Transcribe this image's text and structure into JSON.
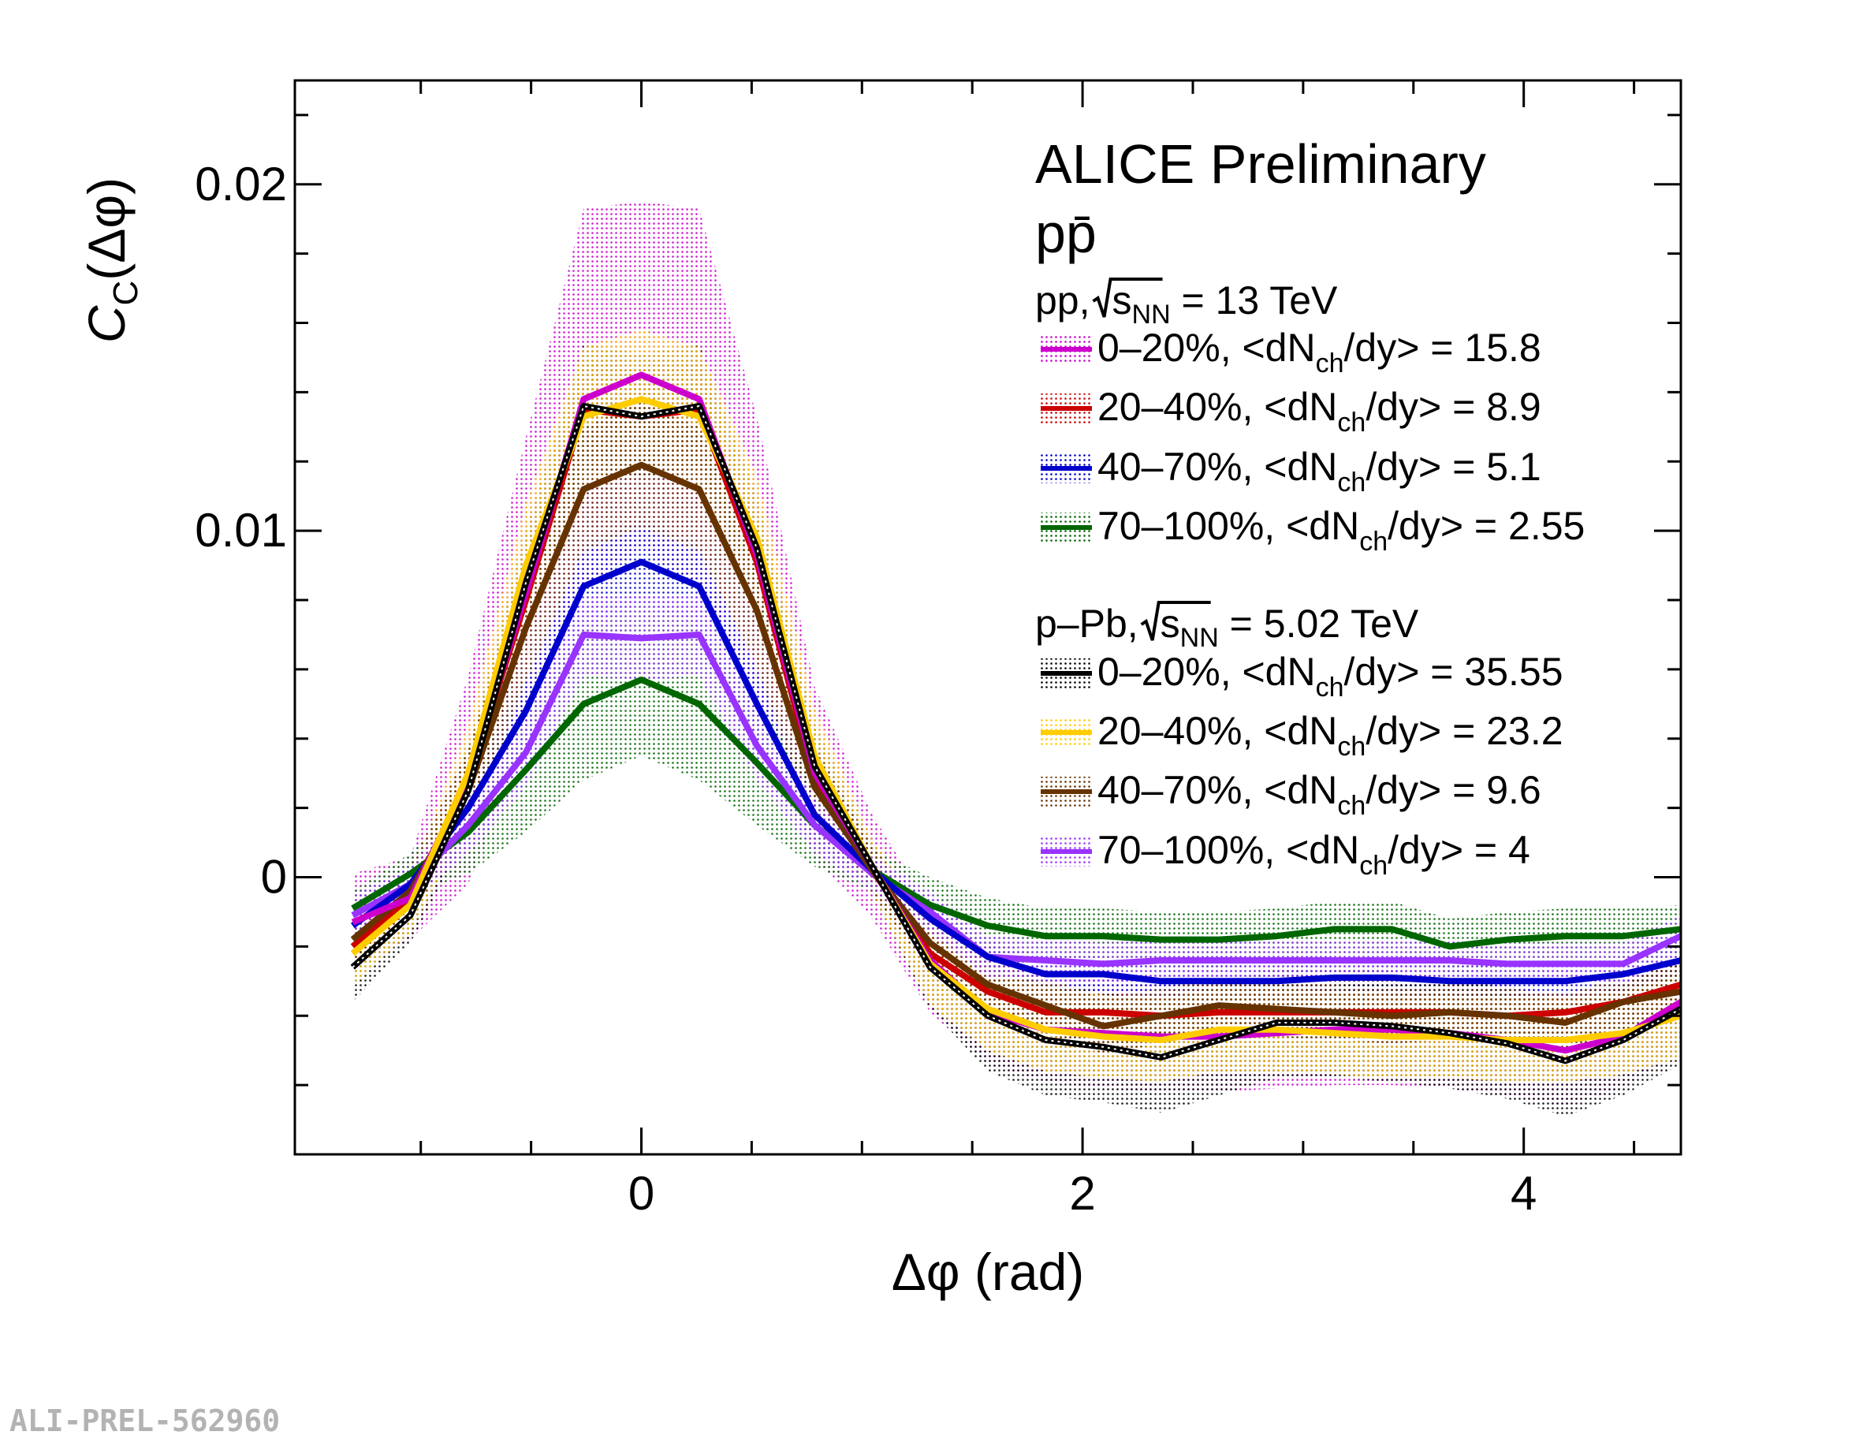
{
  "chart_data": {
    "type": "line",
    "title": "",
    "experiment": "ALICE Preliminary",
    "particle": "pp̄",
    "xlabel": "Δφ (rad)",
    "ylabel": "C_C(Δφ)",
    "ylabel_main": "C",
    "ylabel_sub": "C",
    "ylabel_rest": "(Δφ)",
    "xlim": [
      -1.5708,
      4.7124
    ],
    "ylim": [
      -0.008,
      0.023
    ],
    "xticks": [
      0,
      2,
      4
    ],
    "xtick_labels": [
      "0",
      "2",
      "4"
    ],
    "yticks": [
      0,
      0.01,
      0.02
    ],
    "ytick_labels": [
      "0",
      "0.01",
      "0.02"
    ],
    "x": [
      -1.309,
      -1.0472,
      -0.7854,
      -0.5236,
      -0.2618,
      0.0,
      0.2618,
      0.5236,
      0.7854,
      1.0472,
      1.309,
      1.5708,
      1.8326,
      2.0944,
      2.3562,
      2.618,
      2.8798,
      3.1416,
      3.4034,
      3.6652,
      3.927,
      4.1888,
      4.4506,
      4.7124
    ],
    "groups": [
      {
        "header": "pp, ",
        "sqrt_label": "s",
        "sqrt_sub": "NN",
        "energy": " = 13 TeV",
        "entries": [
          0,
          1,
          2,
          3
        ]
      },
      {
        "header": "p–Pb, ",
        "sqrt_label": "s",
        "sqrt_sub": "NN",
        "energy": " = 5.02 TeV",
        "entries": [
          4,
          5,
          6,
          7
        ]
      }
    ],
    "series": [
      {
        "name": "0–20%, <dN_ch/dy> = 15.8",
        "centrality": "0–20%, <dN",
        "mult": "/dy> = 15.8",
        "color": "#cc00cc",
        "values": [
          -0.0013,
          -0.0006,
          0.0028,
          0.0082,
          0.0138,
          0.0145,
          0.0138,
          0.0093,
          0.003,
          0.0003,
          -0.0024,
          -0.0039,
          -0.0044,
          -0.0045,
          -0.0046,
          -0.0046,
          -0.0045,
          -0.0044,
          -0.0044,
          -0.0045,
          -0.0047,
          -0.005,
          -0.0046,
          -0.0036
        ],
        "band": [
          0.0014,
          0.0012,
          0.003,
          0.0045,
          0.0055,
          0.005,
          0.0055,
          0.004,
          0.0025,
          0.0015,
          0.0015,
          0.0015,
          0.0015,
          0.0016,
          0.0016,
          0.0016,
          0.0016,
          0.0016,
          0.0016,
          0.0016,
          0.0016,
          0.0016,
          0.0015,
          0.0014
        ]
      },
      {
        "name": "20–40%, <dN_ch/dy> = 8.9",
        "centrality": "20–40%, <dN",
        "mult": "/dy> = 8.9",
        "color": "#cc0000",
        "values": [
          -0.002,
          -0.0006,
          0.0028,
          0.008,
          0.0135,
          0.0133,
          0.0135,
          0.0091,
          0.0028,
          0.0002,
          -0.0022,
          -0.0033,
          -0.0039,
          -0.0039,
          -0.004,
          -0.0039,
          -0.0039,
          -0.0039,
          -0.0039,
          -0.0039,
          -0.004,
          -0.0039,
          -0.0036,
          -0.0031
        ],
        "band": [
          0.0008,
          0.0006,
          0.001,
          0.0012,
          0.0014,
          0.0014,
          0.0014,
          0.0012,
          0.001,
          0.0006,
          0.0006,
          0.0006,
          0.0006,
          0.0006,
          0.0006,
          0.0006,
          0.0006,
          0.0006,
          0.0006,
          0.0006,
          0.0006,
          0.0006,
          0.0006,
          0.0006
        ]
      },
      {
        "name": "40–70%, <dN_ch/dy> = 5.1",
        "centrality": "40–70%, <dN",
        "mult": "/dy> = 5.1",
        "color": "#0000cc",
        "values": [
          -0.0014,
          -0.0002,
          0.002,
          0.0048,
          0.0084,
          0.0091,
          0.0084,
          0.005,
          0.0018,
          0.0002,
          -0.0012,
          -0.0023,
          -0.0028,
          -0.0028,
          -0.003,
          -0.003,
          -0.003,
          -0.0029,
          -0.0029,
          -0.003,
          -0.003,
          -0.003,
          -0.0028,
          -0.0024
        ],
        "band": [
          0.0006,
          0.0005,
          0.0008,
          0.001,
          0.0012,
          0.0012,
          0.0012,
          0.001,
          0.0008,
          0.0005,
          0.0005,
          0.0005,
          0.0005,
          0.0005,
          0.0005,
          0.0005,
          0.0005,
          0.0005,
          0.0005,
          0.0005,
          0.0005,
          0.0005,
          0.0005,
          0.0005
        ]
      },
      {
        "name": "70–100%, <dN_ch/dy> = 2.55",
        "centrality": "70–100%, <dN",
        "mult": "/dy> = 2.55",
        "color": "#006600",
        "values": [
          -0.0009,
          0.0001,
          0.0013,
          0.0031,
          0.005,
          0.0057,
          0.005,
          0.0033,
          0.0015,
          0.0002,
          -0.0008,
          -0.0014,
          -0.0017,
          -0.0017,
          -0.0018,
          -0.0018,
          -0.0017,
          -0.0015,
          -0.0015,
          -0.002,
          -0.0018,
          -0.0017,
          -0.0017,
          -0.0015
        ],
        "band": [
          0.0005,
          0.0006,
          0.0012,
          0.0018,
          0.0022,
          0.0022,
          0.0022,
          0.0018,
          0.0012,
          0.0006,
          0.0008,
          0.0008,
          0.0008,
          0.0008,
          0.0008,
          0.0008,
          0.0008,
          0.0008,
          0.0008,
          0.0008,
          0.0008,
          0.0008,
          0.0008,
          0.0007
        ]
      },
      {
        "name": "0–20%, <dN_ch/dy> = 35.55",
        "centrality": "0–20%, <dN",
        "mult": "/dy> = 35.55",
        "color": "#000000",
        "values": [
          -0.0026,
          -0.0011,
          0.0025,
          0.0085,
          0.0136,
          0.0133,
          0.0136,
          0.0095,
          0.0032,
          0.0003,
          -0.0026,
          -0.004,
          -0.0047,
          -0.0049,
          -0.0052,
          -0.0047,
          -0.0042,
          -0.0042,
          -0.0043,
          -0.0045,
          -0.0048,
          -0.0053,
          -0.0047,
          -0.0038
        ],
        "band": [
          0.001,
          0.0008,
          0.0012,
          0.0015,
          0.0018,
          0.0018,
          0.0018,
          0.0015,
          0.0012,
          0.0008,
          0.0012,
          0.0016,
          0.0016,
          0.0016,
          0.0016,
          0.0016,
          0.0016,
          0.0016,
          0.0016,
          0.0016,
          0.0016,
          0.0016,
          0.0016,
          0.0016
        ]
      },
      {
        "name": "20–40%, <dN_ch/dy> = 23.2",
        "centrality": "20–40%, <dN",
        "mult": "/dy> = 23.2",
        "color": "#ffcc00",
        "values": [
          -0.0022,
          -0.0008,
          0.003,
          0.009,
          0.0133,
          0.0138,
          0.0133,
          0.0098,
          0.0035,
          0.0003,
          -0.0025,
          -0.0038,
          -0.0044,
          -0.0046,
          -0.0047,
          -0.0044,
          -0.0044,
          -0.0045,
          -0.0046,
          -0.0046,
          -0.0047,
          -0.0047,
          -0.0045,
          -0.004
        ],
        "band": [
          0.0009,
          0.0008,
          0.0014,
          0.0018,
          0.002,
          0.002,
          0.002,
          0.0018,
          0.0014,
          0.0008,
          0.0012,
          0.0012,
          0.0012,
          0.0012,
          0.0012,
          0.0012,
          0.0012,
          0.0012,
          0.0012,
          0.0012,
          0.0012,
          0.0012,
          0.0012,
          0.0012
        ]
      },
      {
        "name": "40–70%, <dN_ch/dy> = 9.6",
        "centrality": "40–70%, <dN",
        "mult": "/dy> = 9.6",
        "color": "#663300",
        "values": [
          -0.0018,
          -0.0004,
          0.0025,
          0.0072,
          0.0112,
          0.0119,
          0.0112,
          0.0077,
          0.0026,
          0.0002,
          -0.0019,
          -0.0031,
          -0.0037,
          -0.0043,
          -0.004,
          -0.0037,
          -0.0038,
          -0.0039,
          -0.004,
          -0.0039,
          -0.004,
          -0.0042,
          -0.0036,
          -0.0033
        ],
        "band": [
          0.0008,
          0.0007,
          0.0012,
          0.0016,
          0.0018,
          0.0018,
          0.0018,
          0.0016,
          0.0012,
          0.0007,
          0.0008,
          0.0008,
          0.0008,
          0.0008,
          0.0008,
          0.0008,
          0.0008,
          0.0008,
          0.0008,
          0.0008,
          0.0008,
          0.0008,
          0.0008,
          0.0008
        ]
      },
      {
        "name": "70–100%, <dN_ch/dy> = 4",
        "centrality": "70–100%, <dN",
        "mult": "/dy> = 4",
        "color": "#9933ff",
        "values": [
          -0.0011,
          -0.0002,
          0.0015,
          0.0036,
          0.007,
          0.0069,
          0.007,
          0.0038,
          0.0015,
          0.0001,
          -0.001,
          -0.0023,
          -0.0024,
          -0.0025,
          -0.0024,
          -0.0024,
          -0.0024,
          -0.0024,
          -0.0024,
          -0.0024,
          -0.0025,
          -0.0025,
          -0.0025,
          -0.0017
        ],
        "band": [
          0.0006,
          0.0005,
          0.0008,
          0.001,
          0.0012,
          0.0012,
          0.0012,
          0.001,
          0.0008,
          0.0005,
          0.0006,
          0.0006,
          0.0006,
          0.0006,
          0.0006,
          0.0006,
          0.0006,
          0.0006,
          0.0006,
          0.0006,
          0.0006,
          0.0006,
          0.0006,
          0.0006
        ]
      }
    ],
    "sub_ch": "ch",
    "legend_position": "top-right"
  },
  "watermark": "ALI-PREL-562960"
}
